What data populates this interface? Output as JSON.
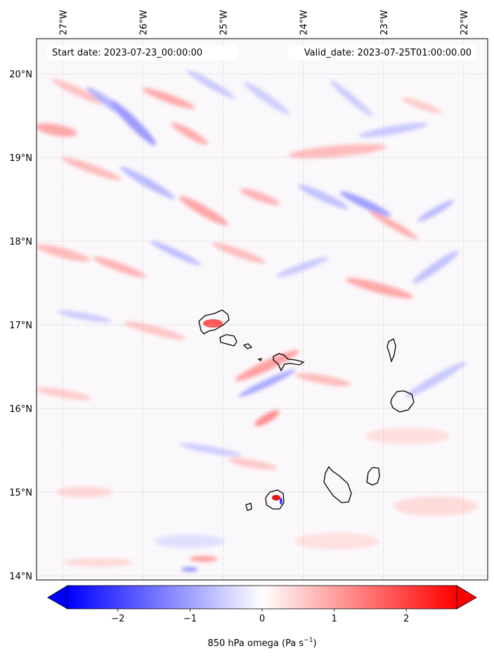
{
  "map": {
    "start_date": "Start date: 2023-07-23_00:00:00",
    "valid_date": "Valid_date: 2023-07-25T01:00:00.00",
    "lon_labels": [
      {
        "lon": -27,
        "text": "27°W"
      },
      {
        "lon": -26,
        "text": "26°W"
      },
      {
        "lon": -25,
        "text": "25°W"
      },
      {
        "lon": -24,
        "text": "24°W"
      },
      {
        "lon": -23,
        "text": "23°W"
      },
      {
        "lon": -22,
        "text": "22°W"
      }
    ],
    "lat_labels": [
      {
        "lat": 20,
        "text": "20°N"
      },
      {
        "lat": 19,
        "text": "19°N"
      },
      {
        "lat": 18,
        "text": "18°N"
      },
      {
        "lat": 17,
        "text": "17°N"
      },
      {
        "lat": 16,
        "text": "16°N"
      },
      {
        "lat": 15,
        "text": "15°N"
      },
      {
        "lat": 14,
        "text": "14°N"
      }
    ],
    "extent": {
      "lon_min": -27.33,
      "lon_max": -21.7,
      "lat_min": 13.95,
      "lat_max": 20.42
    },
    "field": "850 hPa omega",
    "gridlines": true
  },
  "colorbar": {
    "label_main": "850 hPa omega (Pa s",
    "label_exp": "−1",
    "label_close": ")",
    "vmin": -2.7,
    "vmax": 2.7,
    "extend": "both",
    "colormap": "bwr",
    "ticks": [
      {
        "value": -2,
        "text": "−2"
      },
      {
        "value": -1,
        "text": "−1"
      },
      {
        "value": 0,
        "text": "0"
      },
      {
        "value": 1,
        "text": "1"
      },
      {
        "value": 2,
        "text": "2"
      }
    ],
    "colors": {
      "low": "#0000ff",
      "mid": "#ffffff",
      "high": "#ff0000"
    }
  }
}
